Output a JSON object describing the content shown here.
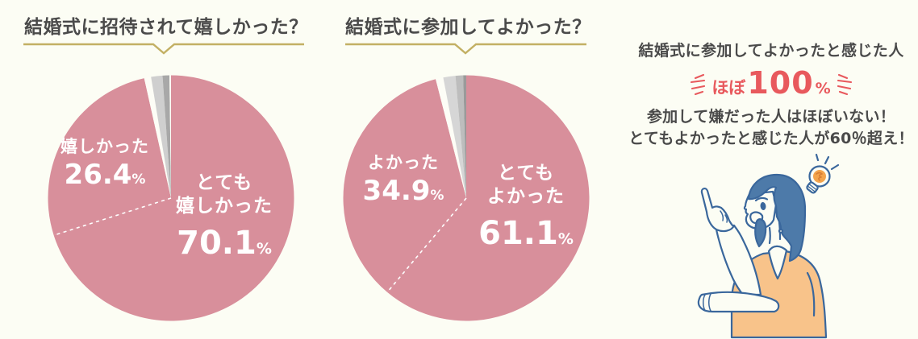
{
  "theme": {
    "background": "#fcfdf4",
    "pink": "#d88f9b",
    "accent_gold": "#c3b064",
    "accent_red": "#e8595d",
    "text_dark": "#4a4a4a",
    "label_white": "#ffffff",
    "illustration_blue": "#3a679c",
    "illustration_hair": "#4d7aa9",
    "illustration_shirt": "#f8c38a",
    "illustration_bulb": "#f4a44c"
  },
  "charts": [
    {
      "title": "結婚式に招待されて嬉しかった？",
      "divider_pct": 70.1,
      "slices": [
        {
          "name": "totemo-ureshikatta",
          "value": 70.1,
          "color": "#d88f9b"
        },
        {
          "name": "ureshikatta",
          "value": 26.4,
          "color": "#d88f9b"
        },
        {
          "name": "gap",
          "value": 0.9,
          "color": "#fdfdf6"
        },
        {
          "name": "unlabeled-light-gray",
          "value": 1.5,
          "color": "#cfcfcf"
        },
        {
          "name": "unlabeled-mid-gray",
          "value": 0.9,
          "color": "#a8a8a8"
        },
        {
          "name": "gap",
          "value": 0.2,
          "color": "#fdfdf6"
        }
      ],
      "primary_label": {
        "line1": "とても",
        "line2": "嬉しかった",
        "value": "70.1",
        "unit": "%"
      },
      "secondary_label": {
        "name": "嬉しかった",
        "value": "26.4",
        "unit": "%"
      }
    },
    {
      "title": "結婚式に参加してよかった？",
      "divider_pct": 61.1,
      "slices": [
        {
          "name": "totemo-yokatta",
          "value": 61.1,
          "color": "#d88f9b"
        },
        {
          "name": "yokatta",
          "value": 34.9,
          "color": "#d88f9b"
        },
        {
          "name": "gap",
          "value": 1.0,
          "color": "#fdfdf6"
        },
        {
          "name": "unlabeled-light-gray",
          "value": 1.6,
          "color": "#d6d6d6"
        },
        {
          "name": "unlabeled-mid-gray",
          "value": 1.0,
          "color": "#bdbdbd"
        },
        {
          "name": "unlabeled-dark-gray",
          "value": 0.4,
          "color": "#9a9a9a"
        }
      ],
      "primary_label": {
        "line1": "とても",
        "line2": "よかった",
        "value": "61.1",
        "unit": "%"
      },
      "secondary_label": {
        "name": "よかった",
        "value": "34.9",
        "unit": "%"
      }
    }
  ],
  "summary": {
    "headline": "結婚式に参加してよかったと感じた人",
    "emphasis": {
      "prefix": "ほぼ",
      "value": "100",
      "unit": "%"
    },
    "note_line1": "参加して嫌だった人はほぼいない！",
    "note_line2": "とてもよかったと感じた人が60％超え！"
  },
  "illustration": {
    "name": "pointing-woman-with-lightbulb"
  },
  "chart_data": [
    {
      "type": "pie",
      "title": "結婚式に招待されて嬉しかった？",
      "labels": [
        "とても嬉しかった",
        "嬉しかった",
        "無ラベル（グレー小片）"
      ],
      "values": [
        70.1,
        26.4,
        3.5
      ],
      "unit": "%",
      "colors": [
        "#d88f9b",
        "#d88f9b",
        "#b8b8b8"
      ],
      "start_angle_deg": 0,
      "direction": "clockwise",
      "legend": "none",
      "annotations": [
        "とても嬉しかった 70.1%",
        "嬉しかった 26.4%"
      ]
    },
    {
      "type": "pie",
      "title": "結婚式に参加してよかった？",
      "labels": [
        "とてもよかった",
        "よかった",
        "無ラベル（グレー小片）"
      ],
      "values": [
        61.1,
        34.9,
        4.0
      ],
      "unit": "%",
      "colors": [
        "#d88f9b",
        "#d88f9b",
        "#b8b8b8"
      ],
      "start_angle_deg": 0,
      "direction": "clockwise",
      "legend": "none",
      "annotations": [
        "とてもよかった 61.1%",
        "よかった 34.9%"
      ]
    }
  ]
}
